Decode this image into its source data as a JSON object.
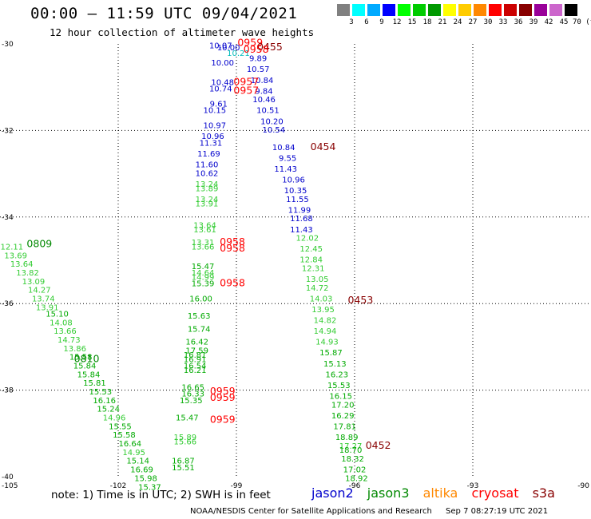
{
  "header": {
    "title": "00:00 – 11:59 UTC 09/04/2021",
    "subtitle": "12 hour collection of altimeter wave heights"
  },
  "colorbar": {
    "colors": [
      "#808080",
      "#00ffff",
      "#00aaff",
      "#0000ff",
      "#00ff00",
      "#00cc00",
      "#009900",
      "#ffff00",
      "#ffcc00",
      "#ff8800",
      "#ff0000",
      "#cc0000",
      "#880000",
      "#990099",
      "#cc66cc",
      "#000000"
    ],
    "labels": [
      "3",
      "6",
      "9",
      "12",
      "15",
      "18",
      "21",
      "24",
      "27",
      "30",
      "33",
      "36",
      "39",
      "42",
      "45",
      "70 (ft)"
    ]
  },
  "map": {
    "lon_ticks": [
      -105,
      -102,
      -99,
      -96,
      -93,
      -90
    ],
    "lat_ticks": [
      -30,
      -32,
      -34,
      -36,
      -38,
      -40
    ],
    "lon_range": [
      -105,
      -90
    ],
    "lat_range": [
      -40,
      -30
    ]
  },
  "colors": {
    "jason2": "#0000cc",
    "jason3": "#008800",
    "altika": "#ff8800",
    "cryosat": "#ff0000",
    "s3a": "#880000",
    "cyan": "#00bbbb",
    "blue": "#0000cc",
    "lgreen": "#33cc33",
    "green": "#00aa00",
    "dgreen": "#008800",
    "red": "#ff0000",
    "maroon": "#880000"
  },
  "observations": [
    {
      "lon": -99.4,
      "lat": -30.1,
      "t": "10.07",
      "c": "blue"
    },
    {
      "lon": -99.2,
      "lat": -30.15,
      "t": "10.00",
      "c": "blue"
    },
    {
      "lon": -98.95,
      "lat": -30.28,
      "t": "10.21",
      "c": "cyan"
    },
    {
      "lon": -98.45,
      "lat": -30.4,
      "t": "9.89",
      "c": "blue"
    },
    {
      "lon": -99.35,
      "lat": -30.5,
      "t": "10.00",
      "c": "blue"
    },
    {
      "lon": -98.45,
      "lat": -30.65,
      "t": "10.57",
      "c": "blue"
    },
    {
      "lon": -98.35,
      "lat": -30.9,
      "t": "10.84",
      "c": "blue"
    },
    {
      "lon": -99.35,
      "lat": -30.95,
      "t": "10.48",
      "c": "blue"
    },
    {
      "lon": -99.4,
      "lat": -31.1,
      "t": "10.74",
      "c": "blue"
    },
    {
      "lon": -98.3,
      "lat": -31.15,
      "t": "9.84",
      "c": "blue"
    },
    {
      "lon": -98.3,
      "lat": -31.35,
      "t": "10.46",
      "c": "blue"
    },
    {
      "lon": -99.45,
      "lat": -31.45,
      "t": "9.61",
      "c": "blue"
    },
    {
      "lon": -99.55,
      "lat": -31.6,
      "t": "10.15",
      "c": "blue"
    },
    {
      "lon": -98.2,
      "lat": -31.6,
      "t": "10.51",
      "c": "blue"
    },
    {
      "lon": -98.1,
      "lat": -31.85,
      "t": "10.20",
      "c": "blue"
    },
    {
      "lon": -99.55,
      "lat": -31.95,
      "t": "10.97",
      "c": "blue"
    },
    {
      "lon": -98.05,
      "lat": -32.05,
      "t": "10.54",
      "c": "blue"
    },
    {
      "lon": -99.6,
      "lat": -32.2,
      "t": "10.96",
      "c": "blue"
    },
    {
      "lon": -99.65,
      "lat": -32.35,
      "t": "11.31",
      "c": "blue"
    },
    {
      "lon": -97.8,
      "lat": -32.45,
      "t": "10.84",
      "c": "blue"
    },
    {
      "lon": -99.7,
      "lat": -32.6,
      "t": "11.69",
      "c": "blue"
    },
    {
      "lon": -97.7,
      "lat": -32.7,
      "t": "9.55",
      "c": "blue"
    },
    {
      "lon": -99.75,
      "lat": -32.85,
      "t": "11.60",
      "c": "blue"
    },
    {
      "lon": -97.75,
      "lat": -32.95,
      "t": "11.43",
      "c": "blue"
    },
    {
      "lon": -99.75,
      "lat": -33.05,
      "t": "10.62",
      "c": "blue"
    },
    {
      "lon": -97.55,
      "lat": -33.2,
      "t": "10.96",
      "c": "blue"
    },
    {
      "lon": -99.75,
      "lat": -33.3,
      "t": "13.24",
      "c": "lgreen"
    },
    {
      "lon": -99.75,
      "lat": -33.4,
      "t": "13.89",
      "c": "lgreen"
    },
    {
      "lon": -97.5,
      "lat": -33.45,
      "t": "10.35",
      "c": "blue"
    },
    {
      "lon": -97.45,
      "lat": -33.65,
      "t": "11.55",
      "c": "blue"
    },
    {
      "lon": -99.75,
      "lat": -33.65,
      "t": "13.24",
      "c": "lgreen"
    },
    {
      "lon": -99.75,
      "lat": -33.75,
      "t": "13.91",
      "c": "lgreen"
    },
    {
      "lon": -97.4,
      "lat": -33.9,
      "t": "11.99",
      "c": "blue"
    },
    {
      "lon": -97.35,
      "lat": -34.1,
      "t": "11.68",
      "c": "blue"
    },
    {
      "lon": -99.8,
      "lat": -34.25,
      "t": "13.64",
      "c": "lgreen"
    },
    {
      "lon": -99.8,
      "lat": -34.35,
      "t": "13.61",
      "c": "lgreen"
    },
    {
      "lon": -97.35,
      "lat": -34.35,
      "t": "11.43",
      "c": "blue"
    },
    {
      "lon": -97.2,
      "lat": -34.55,
      "t": "12.02",
      "c": "lgreen"
    },
    {
      "lon": -99.85,
      "lat": -34.65,
      "t": "13.31",
      "c": "lgreen"
    },
    {
      "lon": -99.85,
      "lat": -34.75,
      "t": "13.66",
      "c": "lgreen"
    },
    {
      "lon": -97.1,
      "lat": -34.8,
      "t": "12.45",
      "c": "lgreen"
    },
    {
      "lon": -97.1,
      "lat": -35.05,
      "t": "12.84",
      "c": "lgreen"
    },
    {
      "lon": -99.85,
      "lat": -35.2,
      "t": "15.47",
      "c": "green"
    },
    {
      "lon": -97.05,
      "lat": -35.25,
      "t": "12.31",
      "c": "lgreen"
    },
    {
      "lon": -99.85,
      "lat": -35.35,
      "t": "14.64",
      "c": "lgreen"
    },
    {
      "lon": -99.85,
      "lat": -35.45,
      "t": "14.99",
      "c": "lgreen"
    },
    {
      "lon": -96.95,
      "lat": -35.5,
      "t": "13.05",
      "c": "lgreen"
    },
    {
      "lon": -99.85,
      "lat": -35.6,
      "t": "15.39",
      "c": "green"
    },
    {
      "lon": -96.95,
      "lat": -35.7,
      "t": "14.72",
      "c": "lgreen"
    },
    {
      "lon": -99.9,
      "lat": -35.95,
      "t": "16.00",
      "c": "green"
    },
    {
      "lon": -96.85,
      "lat": -35.95,
      "t": "14.03",
      "c": "lgreen"
    },
    {
      "lon": -96.8,
      "lat": -36.2,
      "t": "13.95",
      "c": "lgreen"
    },
    {
      "lon": -99.95,
      "lat": -36.35,
      "t": "15.63",
      "c": "green"
    },
    {
      "lon": -96.75,
      "lat": -36.45,
      "t": "14.82",
      "c": "lgreen"
    },
    {
      "lon": -99.95,
      "lat": -36.65,
      "t": "15.74",
      "c": "green"
    },
    {
      "lon": -96.75,
      "lat": -36.7,
      "t": "14.94",
      "c": "lgreen"
    },
    {
      "lon": -100.0,
      "lat": -36.95,
      "t": "16.42",
      "c": "green"
    },
    {
      "lon": -96.7,
      "lat": -36.95,
      "t": "14.93",
      "c": "lgreen"
    },
    {
      "lon": -100.0,
      "lat": -37.15,
      "t": "17.59",
      "c": "green"
    },
    {
      "lon": -96.6,
      "lat": -37.2,
      "t": "15.87",
      "c": "green"
    },
    {
      "lon": -100.05,
      "lat": -37.25,
      "t": "16.81",
      "c": "green"
    },
    {
      "lon": -100.05,
      "lat": -37.35,
      "t": "16.91",
      "c": "green"
    },
    {
      "lon": -96.5,
      "lat": -37.45,
      "t": "15.13",
      "c": "green"
    },
    {
      "lon": -100.05,
      "lat": -37.5,
      "t": "16.54",
      "c": "green"
    },
    {
      "lon": -100.05,
      "lat": -37.6,
      "t": "16.21",
      "c": "green"
    },
    {
      "lon": -96.45,
      "lat": -37.7,
      "t": "16.23",
      "c": "green"
    },
    {
      "lon": -96.4,
      "lat": -37.95,
      "t": "15.53",
      "c": "green"
    },
    {
      "lon": -100.1,
      "lat": -38.0,
      "t": "16.65",
      "c": "green"
    },
    {
      "lon": -100.1,
      "lat": -38.15,
      "t": "16.33",
      "c": "green"
    },
    {
      "lon": -96.35,
      "lat": -38.2,
      "t": "16.15",
      "c": "green"
    },
    {
      "lon": -100.15,
      "lat": -38.3,
      "t": "15.35",
      "c": "green"
    },
    {
      "lon": -96.3,
      "lat": -38.4,
      "t": "17.20",
      "c": "green"
    },
    {
      "lon": -96.3,
      "lat": -38.65,
      "t": "16.29",
      "c": "green"
    },
    {
      "lon": -100.25,
      "lat": -38.7,
      "t": "15.47",
      "c": "green"
    },
    {
      "lon": -96.25,
      "lat": -38.9,
      "t": "17.81",
      "c": "green"
    },
    {
      "lon": -96.2,
      "lat": -39.15,
      "t": "18.89",
      "c": "green"
    },
    {
      "lon": -100.3,
      "lat": -39.15,
      "t": "15.89",
      "c": "lgreen"
    },
    {
      "lon": -100.3,
      "lat": -39.25,
      "t": "15.66",
      "c": "lgreen"
    },
    {
      "lon": -96.1,
      "lat": -39.35,
      "t": "17.27",
      "c": "lgreen"
    },
    {
      "lon": -96.1,
      "lat": -39.45,
      "t": "18.70",
      "c": "green"
    },
    {
      "lon": -96.05,
      "lat": -39.65,
      "t": "18.32",
      "c": "green"
    },
    {
      "lon": -100.35,
      "lat": -39.7,
      "t": "16.87",
      "c": "green"
    },
    {
      "lon": -100.35,
      "lat": -39.85,
      "t": "15.51",
      "c": "green"
    },
    {
      "lon": -96.0,
      "lat": -39.9,
      "t": "17.02",
      "c": "green"
    },
    {
      "lon": -95.95,
      "lat": -40.1,
      "t": "18.92",
      "c": "green"
    },
    {
      "lon": -104.7,
      "lat": -34.75,
      "t": "12.11",
      "c": "lgreen"
    },
    {
      "lon": -104.6,
      "lat": -34.95,
      "t": "13.69",
      "c": "lgreen"
    },
    {
      "lon": -104.45,
      "lat": -35.15,
      "t": "13.64",
      "c": "lgreen"
    },
    {
      "lon": -104.3,
      "lat": -35.35,
      "t": "13.82",
      "c": "lgreen"
    },
    {
      "lon": -104.15,
      "lat": -35.55,
      "t": "13.09",
      "c": "lgreen"
    },
    {
      "lon": -104.0,
      "lat": -35.75,
      "t": "14.27",
      "c": "lgreen"
    },
    {
      "lon": -103.9,
      "lat": -35.95,
      "t": "13.74",
      "c": "lgreen"
    },
    {
      "lon": -103.8,
      "lat": -36.15,
      "t": "13.91",
      "c": "lgreen"
    },
    {
      "lon": -103.55,
      "lat": -36.3,
      "t": "15.10",
      "c": "green"
    },
    {
      "lon": -103.45,
      "lat": -36.5,
      "t": "14.08",
      "c": "lgreen"
    },
    {
      "lon": -103.35,
      "lat": -36.7,
      "t": "13.66",
      "c": "lgreen"
    },
    {
      "lon": -103.25,
      "lat": -36.9,
      "t": "14.73",
      "c": "lgreen"
    },
    {
      "lon": -103.1,
      "lat": -37.1,
      "t": "13.86",
      "c": "lgreen"
    },
    {
      "lon": -102.95,
      "lat": -37.3,
      "t": "15.58",
      "c": "green"
    },
    {
      "lon": -102.85,
      "lat": -37.5,
      "t": "15.84",
      "c": "green"
    },
    {
      "lon": -102.75,
      "lat": -37.7,
      "t": "15.84",
      "c": "green"
    },
    {
      "lon": -102.6,
      "lat": -37.9,
      "t": "15.81",
      "c": "green"
    },
    {
      "lon": -102.45,
      "lat": -38.1,
      "t": "15.53",
      "c": "green"
    },
    {
      "lon": -102.35,
      "lat": -38.3,
      "t": "16.16",
      "c": "green"
    },
    {
      "lon": -102.25,
      "lat": -38.5,
      "t": "15.24",
      "c": "green"
    },
    {
      "lon": -102.1,
      "lat": -38.7,
      "t": "14.96",
      "c": "lgreen"
    },
    {
      "lon": -101.95,
      "lat": -38.9,
      "t": "15.55",
      "c": "green"
    },
    {
      "lon": -101.85,
      "lat": -39.1,
      "t": "15.58",
      "c": "green"
    },
    {
      "lon": -101.7,
      "lat": -39.3,
      "t": "16.64",
      "c": "green"
    },
    {
      "lon": -101.6,
      "lat": -39.5,
      "t": "14.95",
      "c": "lgreen"
    },
    {
      "lon": -101.5,
      "lat": -39.7,
      "t": "15.14",
      "c": "green"
    },
    {
      "lon": -101.4,
      "lat": -39.9,
      "t": "16.69",
      "c": "green"
    },
    {
      "lon": -101.3,
      "lat": -40.1,
      "t": "15.98",
      "c": "green"
    },
    {
      "lon": -101.2,
      "lat": -40.3,
      "t": "15.37",
      "c": "green"
    }
  ],
  "pass_times": [
    {
      "lon": -98.65,
      "lat": -30.05,
      "t": "0959",
      "c": "red"
    },
    {
      "lon": -98.15,
      "lat": -30.15,
      "t": "0455",
      "c": "maroon"
    },
    {
      "lon": -98.5,
      "lat": -30.2,
      "t": "0958",
      "c": "red"
    },
    {
      "lon": -98.75,
      "lat": -30.95,
      "t": "0957",
      "c": "red"
    },
    {
      "lon": -98.75,
      "lat": -31.15,
      "t": "0957",
      "c": "red"
    },
    {
      "lon": -96.8,
      "lat": -32.45,
      "t": "0454",
      "c": "maroon"
    },
    {
      "lon": -99.1,
      "lat": -34.65,
      "t": "0958",
      "c": "red"
    },
    {
      "lon": -99.1,
      "lat": -34.8,
      "t": "0958",
      "c": "red"
    },
    {
      "lon": -99.1,
      "lat": -35.6,
      "t": "0958",
      "c": "red"
    },
    {
      "lon": -95.85,
      "lat": -36.0,
      "t": "0453",
      "c": "maroon"
    },
    {
      "lon": -99.35,
      "lat": -38.1,
      "t": "0959",
      "c": "red"
    },
    {
      "lon": -99.35,
      "lat": -38.25,
      "t": "0959",
      "c": "red"
    },
    {
      "lon": -99.35,
      "lat": -38.75,
      "t": "0959",
      "c": "red"
    },
    {
      "lon": -95.4,
      "lat": -39.35,
      "t": "0452",
      "c": "maroon"
    },
    {
      "lon": -104.0,
      "lat": -34.7,
      "t": "0809",
      "c": "dgreen"
    },
    {
      "lon": -102.8,
      "lat": -37.35,
      "t": "0810",
      "c": "dgreen"
    }
  ],
  "footer": {
    "note": "note:  1) Time is in UTC; 2) SWH is in feet",
    "legend": [
      "jason2",
      "jason3",
      "altika",
      "cryosat",
      "s3a"
    ],
    "credit_org": "NOAA/NESDIS Center for Satellite Applications and Research",
    "credit_time": "Sep  7 08:27:19 UTC 2021"
  }
}
